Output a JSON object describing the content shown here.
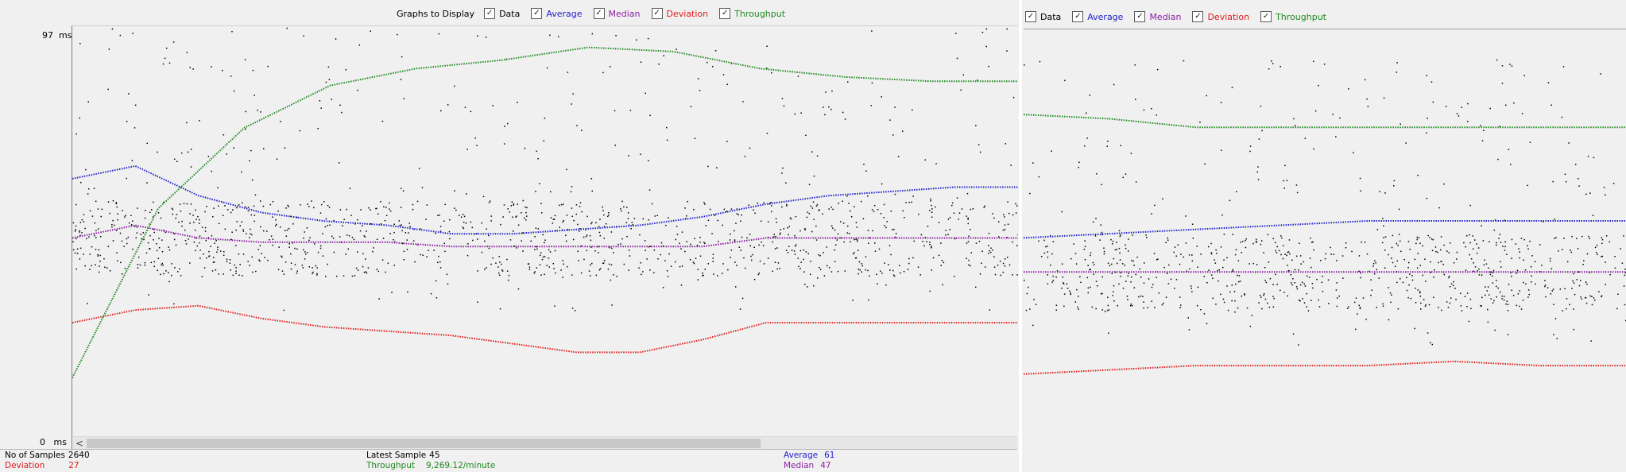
{
  "graph_panel_left": {
    "legend_title": "Graphs to Display",
    "legend": [
      {
        "id": "data",
        "label": "Data",
        "checked": true,
        "color": "#000000"
      },
      {
        "id": "average",
        "label": "Average",
        "checked": true,
        "color": "#1f1fcc"
      },
      {
        "id": "median",
        "label": "Median",
        "checked": true,
        "color": "#8b1fa3"
      },
      {
        "id": "deviation",
        "label": "Deviation",
        "checked": true,
        "color": "#e01b1b"
      },
      {
        "id": "throughput",
        "label": "Throughput",
        "checked": true,
        "color": "#1f8a1f"
      }
    ],
    "y_max_label": "97  ms",
    "y_min_label": "0   ms",
    "scroll_left_icon": "<"
  },
  "graph_panel_right": {
    "legend": [
      {
        "id": "data",
        "label": "Data",
        "checked": true,
        "color": "#000000"
      },
      {
        "id": "average",
        "label": "Average",
        "checked": true,
        "color": "#1f1fcc"
      },
      {
        "id": "median",
        "label": "Median",
        "checked": true,
        "color": "#8b1fa3"
      },
      {
        "id": "deviation",
        "label": "Deviation",
        "checked": true,
        "color": "#e01b1b"
      },
      {
        "id": "throughput",
        "label": "Throughput",
        "checked": true,
        "color": "#1f8a1f"
      }
    ]
  },
  "stats": {
    "samples_label": "No of Samples",
    "samples_value": "2640",
    "deviation_label": "Deviation",
    "deviation_value": "27",
    "latest_label": "Latest Sample",
    "latest_value": "45",
    "throughput_label": "Throughput",
    "throughput_value": "9,269.12/minute",
    "average_label": "Average",
    "average_value": "61",
    "median_label": "Median",
    "median_value": "47"
  },
  "colors": {
    "data": "#000000",
    "average": "#1f1fcc",
    "median": "#8b1fa3",
    "deviation": "#e01b1b",
    "throughput": "#1f8a1f"
  },
  "chart_data": [
    {
      "type": "scatter",
      "title": "",
      "ylim": [
        0,
        97
      ],
      "yunit": "ms",
      "grid": false,
      "series": [
        {
          "name": "Average",
          "values": [
            61,
            64,
            57,
            53,
            51,
            50,
            48,
            48,
            49,
            50,
            52,
            55,
            57,
            58,
            59,
            59
          ]
        },
        {
          "name": "Median",
          "values": [
            47,
            50,
            47,
            46,
            46,
            46,
            45,
            45,
            45,
            45,
            45,
            47,
            47,
            47,
            47,
            47
          ]
        },
        {
          "name": "Deviation",
          "values": [
            27,
            30,
            31,
            28,
            26,
            25,
            24,
            22,
            20,
            20,
            23,
            27,
            27,
            27,
            27,
            27
          ]
        },
        {
          "name": "Throughput",
          "values": [
            14,
            54,
            73,
            83,
            87,
            89,
            92,
            91,
            87,
            85,
            84,
            84
          ]
        }
      ]
    },
    {
      "type": "scatter",
      "title": "",
      "grid": false,
      "series": [
        {
          "name": "Average",
          "values": [
            55,
            56,
            57,
            58,
            59,
            59,
            59,
            59
          ]
        },
        {
          "name": "Median",
          "values": [
            47,
            47,
            47,
            47,
            47,
            47,
            47,
            47
          ]
        },
        {
          "name": "Deviation",
          "values": [
            23,
            24,
            25,
            25,
            25,
            26,
            25,
            25
          ]
        },
        {
          "name": "Throughput",
          "values": [
            84,
            83,
            81,
            81,
            81,
            81,
            81,
            81
          ]
        }
      ]
    }
  ]
}
